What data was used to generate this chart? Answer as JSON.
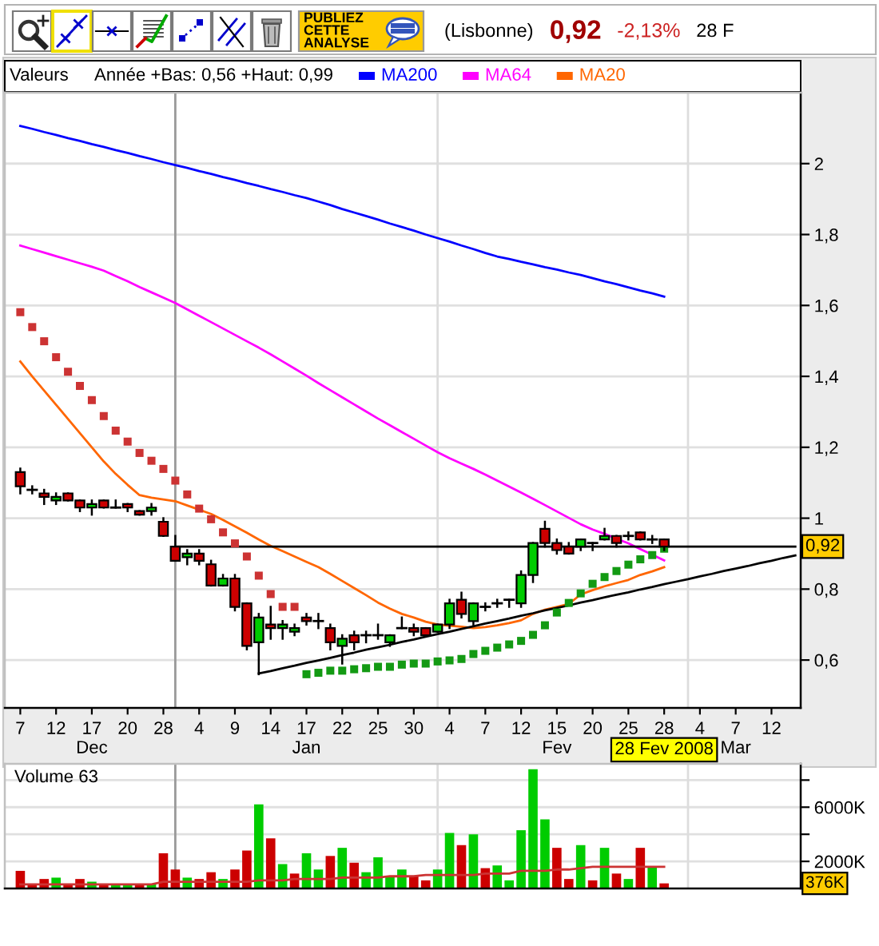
{
  "chart_data": [
    {
      "type": "candlestick",
      "title": "(Lisbonne)",
      "legend": "top",
      "legend_title": "Valeurs",
      "annotations": [
        "PUBLIEZ\nCETTE\nANALYSE",
        "0,92",
        "-2,13%",
        "28 F",
        "Année +Bas: 0,56 +Haut: 0,99",
        "28 Fev 2008",
        {
          "text": "0,92",
          "y": 0.92
        }
      ],
      "categories": [
        "7",
        null,
        null,
        "12",
        null,
        null,
        "17\nDec",
        null,
        null,
        "20",
        null,
        null,
        "28",
        null,
        null,
        "4",
        null,
        null,
        "9",
        null,
        null,
        "14",
        null,
        null,
        "17\nJan",
        null,
        null,
        "22",
        null,
        null,
        "25",
        null,
        null,
        "30",
        null,
        null,
        "4",
        null,
        null,
        "7",
        null,
        null,
        "12",
        null,
        null,
        "15\nFev",
        null,
        null,
        "20",
        null,
        null,
        "25",
        null,
        null,
        "28",
        null,
        null,
        "4",
        null,
        null,
        "7\nMar",
        null,
        null,
        "12",
        null,
        null
      ],
      "ohlc": [
        [
          1.13,
          1.14,
          1.07,
          1.09
        ],
        [
          1.08,
          1.09,
          1.07,
          1.08
        ],
        [
          1.07,
          1.08,
          1.04,
          1.06
        ],
        [
          1.05,
          1.07,
          1.04,
          1.06
        ],
        [
          1.07,
          1.07,
          1.05,
          1.05
        ],
        [
          1.05,
          1.05,
          1.02,
          1.03
        ],
        [
          1.03,
          1.05,
          1.01,
          1.04
        ],
        [
          1.05,
          1.05,
          1.03,
          1.03
        ],
        [
          1.03,
          1.05,
          1.03,
          1.03
        ],
        [
          1.04,
          1.04,
          1.02,
          1.03
        ],
        [
          1.02,
          1.02,
          1.01,
          1.01
        ],
        [
          1.02,
          1.04,
          1.01,
          1.03
        ],
        [
          0.99,
          1.0,
          0.95,
          0.95
        ],
        [
          0.92,
          0.95,
          0.88,
          0.88
        ],
        [
          0.89,
          0.91,
          0.87,
          0.9
        ],
        [
          0.9,
          0.91,
          0.87,
          0.88
        ],
        [
          0.87,
          0.88,
          0.81,
          0.81
        ],
        [
          0.81,
          0.84,
          0.81,
          0.83
        ],
        [
          0.83,
          0.84,
          0.74,
          0.75
        ],
        [
          0.76,
          0.76,
          0.63,
          0.64
        ],
        [
          0.65,
          0.73,
          0.56,
          0.72
        ],
        [
          0.7,
          0.75,
          0.66,
          0.69
        ],
        [
          0.69,
          0.71,
          0.66,
          0.7
        ],
        [
          0.68,
          0.7,
          0.67,
          0.69
        ],
        [
          0.72,
          0.73,
          0.7,
          0.71
        ],
        [
          0.71,
          0.73,
          0.69,
          0.71
        ],
        [
          0.69,
          0.7,
          0.63,
          0.65
        ],
        [
          0.64,
          0.67,
          0.59,
          0.66
        ],
        [
          0.67,
          0.68,
          0.63,
          0.65
        ],
        [
          0.67,
          0.68,
          0.65,
          0.67
        ],
        [
          0.67,
          0.7,
          0.66,
          0.67
        ],
        [
          0.65,
          0.67,
          0.64,
          0.67
        ],
        [
          0.69,
          0.72,
          0.69,
          0.69
        ],
        [
          0.69,
          0.7,
          0.67,
          0.68
        ],
        [
          0.69,
          0.69,
          0.67,
          0.67
        ],
        [
          0.68,
          0.7,
          0.68,
          0.7
        ],
        [
          0.7,
          0.77,
          0.69,
          0.76
        ],
        [
          0.77,
          0.79,
          0.72,
          0.73
        ],
        [
          0.71,
          0.76,
          0.7,
          0.76
        ],
        [
          0.75,
          0.76,
          0.74,
          0.75
        ],
        [
          0.76,
          0.77,
          0.75,
          0.76
        ],
        [
          0.77,
          0.77,
          0.75,
          0.77
        ],
        [
          0.76,
          0.85,
          0.75,
          0.84
        ],
        [
          0.84,
          0.93,
          0.82,
          0.93
        ],
        [
          0.97,
          0.99,
          0.92,
          0.93
        ],
        [
          0.93,
          0.94,
          0.9,
          0.91
        ],
        [
          0.92,
          0.93,
          0.9,
          0.9
        ],
        [
          0.92,
          0.94,
          0.91,
          0.94
        ],
        [
          0.93,
          0.93,
          0.91,
          0.93
        ],
        [
          0.94,
          0.97,
          0.94,
          0.95
        ],
        [
          0.95,
          0.95,
          0.92,
          0.93
        ],
        [
          0.95,
          0.96,
          0.94,
          0.95
        ],
        [
          0.96,
          0.96,
          0.94,
          0.94
        ],
        [
          0.94,
          0.95,
          0.93,
          0.94
        ],
        [
          0.94,
          0.94,
          0.91,
          0.92
        ],
        null,
        null,
        null,
        null,
        null,
        null,
        null,
        null,
        null,
        null,
        null
      ],
      "colors": [
        "#cc0000",
        "#000000",
        "#cc0000",
        "#00cc00",
        "#cc0000",
        "#cc0000",
        "#00cc00",
        "#cc0000",
        "#000000",
        "#cc0000",
        "#cc0000",
        "#00cc00",
        "#cc0000",
        "#cc0000",
        "#00cc00",
        "#cc0000",
        "#cc0000",
        "#00cc00",
        "#cc0000",
        "#cc0000",
        "#00cc00",
        "#cc0000",
        "#00cc00",
        "#00cc00",
        "#cc0000",
        "#000000",
        "#cc0000",
        "#00cc00",
        "#cc0000",
        "#000000",
        "#000000",
        "#00cc00",
        "#000000",
        "#cc0000",
        "#cc0000",
        "#00cc00",
        "#00cc00",
        "#cc0000",
        "#00cc00",
        "#000000",
        "#000000",
        "#000000",
        "#00cc00",
        "#00cc00",
        "#cc0000",
        "#cc0000",
        "#cc0000",
        "#00cc00",
        "#000000",
        "#00cc00",
        "#cc0000",
        "#000000",
        "#cc0000",
        "#000000",
        "#cc0000",
        null,
        null,
        null,
        null,
        null,
        null,
        null,
        null,
        null,
        null,
        null
      ],
      "series": [
        {
          "type": "line",
          "name": "MA200",
          "color": "#0000ff",
          "values": [
            2.106,
            2.098,
            2.089,
            2.081,
            2.072,
            2.064,
            2.055,
            2.047,
            2.038,
            2.03,
            2.021,
            2.013,
            2.004,
            1.996,
            1.988,
            1.979,
            1.971,
            1.962,
            1.954,
            1.945,
            1.937,
            1.928,
            1.92,
            1.911,
            1.903,
            1.893,
            1.883,
            1.872,
            1.862,
            1.852,
            1.842,
            1.831,
            1.821,
            1.811,
            1.8,
            1.79,
            1.78,
            1.769,
            1.759,
            1.748,
            1.738,
            1.731,
            1.723,
            1.716,
            1.708,
            1.701,
            1.693,
            1.686,
            1.677,
            1.668,
            1.66,
            1.651,
            1.642,
            1.634,
            1.625,
            null,
            null,
            null,
            null,
            null,
            null,
            null,
            null,
            null,
            null,
            null
          ]
        },
        {
          "type": "line",
          "name": "MA64",
          "color": "#ff00ff",
          "values": [
            1.769,
            1.759,
            1.749,
            1.739,
            1.729,
            1.719,
            1.709,
            1.698,
            1.683,
            1.668,
            1.652,
            1.637,
            1.622,
            1.607,
            1.589,
            1.571,
            1.553,
            1.535,
            1.517,
            1.499,
            1.481,
            1.462,
            1.442,
            1.422,
            1.402,
            1.381,
            1.361,
            1.341,
            1.321,
            1.301,
            1.281,
            1.262,
            1.243,
            1.224,
            1.205,
            1.186,
            1.169,
            1.154,
            1.139,
            1.123,
            1.106,
            1.089,
            1.072,
            1.055,
            1.037,
            1.019,
            1.001,
            0.983,
            0.968,
            0.956,
            0.942,
            0.929,
            0.913,
            0.897,
            0.881,
            null,
            null,
            null,
            null,
            null,
            null,
            null,
            null,
            null,
            null,
            null
          ]
        },
        {
          "type": "line",
          "name": "MA20",
          "color": "#ff6600",
          "values": [
            1.442,
            1.4,
            1.36,
            1.32,
            1.28,
            1.24,
            1.2,
            1.16,
            1.125,
            1.094,
            1.065,
            1.058,
            1.053,
            1.048,
            1.036,
            1.024,
            1.012,
            0.995,
            0.977,
            0.959,
            0.94,
            0.922,
            0.907,
            0.892,
            0.877,
            0.862,
            0.843,
            0.823,
            0.803,
            0.783,
            0.762,
            0.745,
            0.73,
            0.72,
            0.708,
            0.7,
            0.697,
            0.694,
            0.69,
            0.693,
            0.698,
            0.704,
            0.712,
            0.73,
            0.742,
            0.75,
            0.758,
            0.785,
            0.797,
            0.808,
            0.817,
            0.826,
            0.84,
            0.85,
            0.862,
            null,
            null,
            null,
            null,
            null,
            null,
            null,
            null,
            null,
            null,
            null
          ]
        },
        {
          "type": "line",
          "color": "#000000",
          "values": [
            null,
            null,
            null,
            null,
            null,
            null,
            null,
            null,
            null,
            null,
            null,
            null,
            null,
            null,
            null,
            null,
            null,
            null,
            null,
            null,
            0.562,
            0.569,
            0.577,
            0.584,
            0.592,
            0.599,
            0.606,
            0.614,
            0.621,
            0.629,
            0.636,
            0.643,
            0.651,
            0.658,
            0.666,
            0.673,
            0.68,
            0.688,
            0.695,
            0.703,
            0.71,
            0.717,
            0.725,
            0.732,
            0.74,
            0.747,
            0.754,
            0.762,
            0.769,
            0.777,
            0.784,
            0.791,
            0.799,
            0.806,
            0.814,
            0.821,
            0.828,
            0.836,
            0.843,
            0.851,
            0.858,
            0.865,
            0.873,
            0.88,
            0.888,
            0.895
          ]
        },
        {
          "type": "line",
          "color": "#000000",
          "values": [
            null,
            null,
            null,
            null,
            null,
            null,
            null,
            null,
            null,
            null,
            null,
            null,
            null,
            0.92,
            0.92,
            0.92,
            0.92,
            0.92,
            0.92,
            0.92,
            0.92,
            0.92,
            0.92,
            0.92,
            0.92,
            0.92,
            0.92,
            0.92,
            0.92,
            0.92,
            0.92,
            0.92,
            0.92,
            0.92,
            0.92,
            0.92,
            0.92,
            0.92,
            0.92,
            0.92,
            0.92,
            0.92,
            0.92,
            0.92,
            0.92,
            0.92,
            0.92,
            0.92,
            0.92,
            0.92,
            0.92,
            0.92,
            0.92,
            0.92,
            0.92,
            0.92,
            0.92,
            0.92,
            0.92,
            0.92,
            0.92,
            0.92,
            0.92,
            0.92,
            0.92,
            0.92
          ]
        },
        {
          "type": "scatter",
          "marker": "square",
          "color": "#cc3333",
          "values": [
            1.581,
            1.539,
            1.499,
            1.454,
            1.413,
            1.373,
            1.333,
            1.288,
            1.247,
            1.216,
            1.184,
            1.162,
            1.139,
            1.106,
            1.067,
            1.027,
            0.997,
            0.96,
            0.929,
            0.892,
            0.838,
            0.786,
            0.75,
            0.75,
            null,
            null,
            null,
            null,
            null,
            null,
            null,
            null,
            null,
            null,
            null,
            null,
            null,
            null,
            null,
            null,
            null,
            null,
            null,
            null,
            null,
            null,
            null,
            null,
            null,
            null,
            null,
            null,
            null,
            null,
            null,
            null,
            null,
            null,
            null,
            null,
            null,
            null,
            null,
            null,
            null,
            null
          ]
        },
        {
          "type": "scatter",
          "marker": "square",
          "color": "#139a13",
          "values": [
            null,
            null,
            null,
            null,
            null,
            null,
            null,
            null,
            null,
            null,
            null,
            null,
            null,
            null,
            null,
            null,
            null,
            null,
            null,
            null,
            null,
            null,
            null,
            null,
            0.56,
            0.564,
            0.57,
            0.57,
            0.574,
            0.577,
            0.581,
            0.581,
            0.587,
            0.59,
            0.59,
            0.596,
            0.599,
            0.603,
            0.617,
            0.626,
            0.635,
            0.644,
            0.654,
            0.671,
            0.698,
            0.734,
            0.761,
            0.788,
            0.815,
            0.834,
            0.851,
            0.869,
            0.884,
            0.896,
            0.914,
            null,
            null,
            null,
            null,
            null,
            null,
            null,
            null,
            null,
            null,
            null
          ]
        }
      ],
      "ylim": [
        0.465,
        2.2
      ],
      "yticks": [
        {
          "value": 0.6,
          "label": "0,6"
        },
        {
          "value": 0.8,
          "label": "0,8"
        },
        1,
        {
          "value": 1.2,
          "label": "1,2"
        },
        {
          "value": 1.4,
          "label": "1,4"
        },
        {
          "value": 1.6,
          "label": "1,6"
        },
        {
          "value": 1.8,
          "label": "1,8"
        },
        2
      ],
      "grid": true
    },
    {
      "type": "bar",
      "title": "Volume 63",
      "tick_labels": "y",
      "categories": [
        null,
        null,
        null,
        null,
        null,
        null,
        null,
        null,
        null,
        null,
        null,
        null,
        null,
        null,
        null,
        null,
        null,
        null,
        null,
        null,
        null,
        null,
        null,
        null,
        null,
        null,
        null,
        null,
        null,
        null,
        null,
        null,
        null,
        null,
        null,
        null,
        null,
        null,
        null,
        null,
        null,
        null,
        null,
        null,
        null,
        null,
        null,
        null,
        null,
        null,
        null,
        null,
        null,
        null,
        null,
        null,
        null,
        null,
        null,
        null,
        null,
        null,
        null,
        null,
        null,
        null
      ],
      "values": [
        1300,
        300,
        700,
        800,
        300,
        700,
        500,
        300,
        300,
        300,
        300,
        300,
        2600,
        1400,
        800,
        700,
        1200,
        700,
        1400,
        2800,
        6200,
        3700,
        1800,
        1100,
        2600,
        1400,
        2400,
        3000,
        1900,
        1200,
        2300,
        900,
        1400,
        900,
        600,
        1400,
        4100,
        3200,
        4000,
        1500,
        1700,
        600,
        4300,
        8800,
        5100,
        3000,
        700,
        3200,
        600,
        3000,
        1100,
        700,
        3000,
        1600,
        376,
        null,
        null,
        null,
        null,
        null,
        null,
        null,
        null,
        null,
        null,
        null
      ],
      "colors": [
        "#cc0000",
        "#cc0000",
        "#cc0000",
        "#00cc00",
        "#cc0000",
        "#cc0000",
        "#00cc00",
        "#cc0000",
        "#00cc00",
        "#00cc00",
        "#cc0000",
        "#00cc00",
        "#cc0000",
        "#cc0000",
        "#00cc00",
        "#cc0000",
        "#cc0000",
        "#00cc00",
        "#cc0000",
        "#cc0000",
        "#00cc00",
        "#cc0000",
        "#00cc00",
        "#cc0000",
        "#00cc00",
        "#00cc00",
        "#cc0000",
        "#00cc00",
        "#cc0000",
        "#00cc00",
        "#00cc00",
        "#00cc00",
        "#00cc00",
        "#cc0000",
        "#cc0000",
        "#00cc00",
        "#00cc00",
        "#cc0000",
        "#00cc00",
        "#cc0000",
        "#00cc00",
        "#00cc00",
        "#00cc00",
        "#00cc00",
        "#00cc00",
        "#cc0000",
        "#cc0000",
        "#00cc00",
        "#cc0000",
        "#00cc00",
        "#cc0000",
        "#00cc00",
        "#cc0000",
        "#00cc00",
        "#cc0000",
        null,
        null,
        null,
        null,
        null,
        null,
        null,
        null,
        null,
        null,
        null
      ],
      "series": [
        {
          "type": "line",
          "color": "#cc3333",
          "values": [
            300,
            300,
            300,
            300,
            300,
            300,
            300,
            300,
            300,
            300,
            300,
            300,
            500,
            500,
            500,
            500,
            500,
            500,
            500,
            500,
            600,
            600,
            600,
            700,
            700,
            700,
            700,
            800,
            800,
            800,
            800,
            900,
            900,
            900,
            1000,
            1000,
            1000,
            1000,
            1000,
            1100,
            1100,
            1100,
            1300,
            1300,
            1300,
            1400,
            1400,
            1500,
            1600,
            1600,
            1600,
            1600,
            1600,
            1600,
            1600,
            null,
            null,
            null,
            null,
            null,
            null,
            null,
            null,
            null,
            null,
            null
          ]
        }
      ],
      "ylim": [
        0,
        9200
      ],
      "yticks": [
        {
          "value": 2000,
          "label": "2000K"
        },
        {
          "value": 4000,
          "label": null
        },
        {
          "value": 6000,
          "label": "6000K"
        },
        {
          "value": 8000,
          "label": null
        }
      ],
      "grid": true,
      "annotations": [
        {
          "text": "376K",
          "y": 376
        }
      ]
    }
  ]
}
